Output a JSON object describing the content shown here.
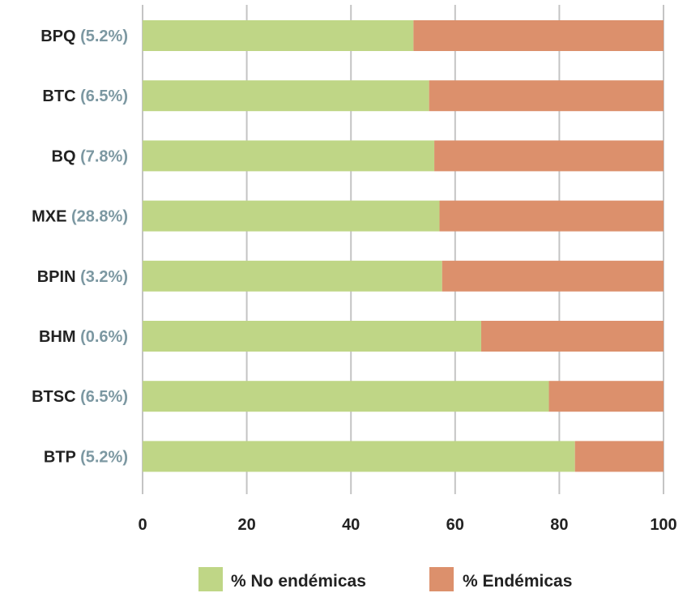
{
  "chart_data": {
    "type": "bar",
    "orientation": "horizontal",
    "stacked": true,
    "categories": [
      {
        "name": "BPQ",
        "pct": "(5.2%)"
      },
      {
        "name": "BTC",
        "pct": "(6.5%)"
      },
      {
        "name": "BQ",
        "pct": "(7.8%)"
      },
      {
        "name": "MXE",
        "pct": "(28.8%)"
      },
      {
        "name": "BPIN",
        "pct": "(3.2%)"
      },
      {
        "name": "BHM",
        "pct": "(0.6%)"
      },
      {
        "name": "BTSC",
        "pct": "(6.5%)"
      },
      {
        "name": "BTP",
        "pct": "(5.2%)"
      }
    ],
    "series": [
      {
        "name": "% No endémicas",
        "color": "#bfd686",
        "values": [
          52,
          55,
          56,
          57,
          57.5,
          65,
          78,
          83
        ]
      },
      {
        "name": "% Endémicas",
        "color": "#dc906c",
        "values": [
          48,
          45,
          44,
          43,
          42.5,
          35,
          22,
          17
        ]
      }
    ],
    "xlim": [
      0,
      100
    ],
    "xticks": [
      "0",
      "20",
      "40",
      "60",
      "80",
      "100"
    ],
    "grid": "vertical",
    "legend_position": "bottom"
  }
}
